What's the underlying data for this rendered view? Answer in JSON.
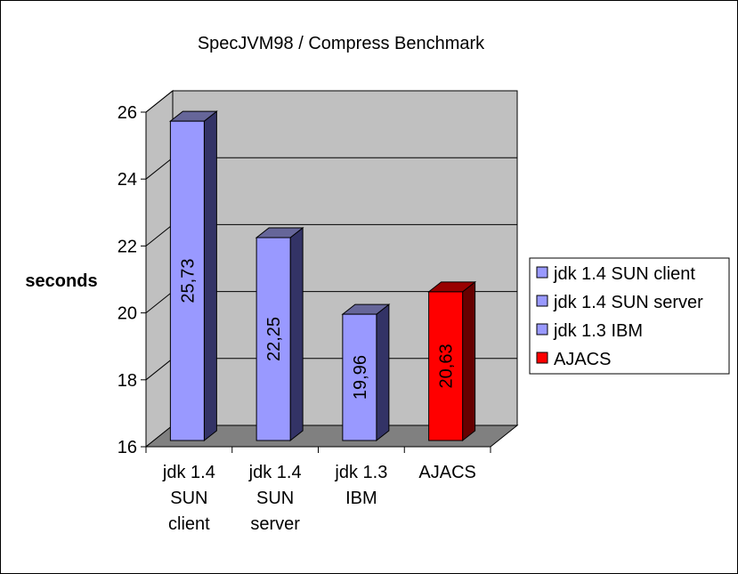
{
  "chart_data": {
    "type": "bar",
    "title": "SpecJVM98 / Compress Benchmark",
    "xlabel": "",
    "ylabel": "seconds",
    "ylim": [
      16,
      26
    ],
    "yticks": [
      "16",
      "18",
      "20",
      "22",
      "24",
      "26"
    ],
    "ytick_values": [
      16,
      18,
      20,
      22,
      24,
      26
    ],
    "categories": [
      [
        "jdk 1.4",
        "SUN",
        "client"
      ],
      [
        "jdk 1.4",
        "SUN",
        "server"
      ],
      [
        "jdk 1.3",
        "IBM"
      ],
      [
        "AJACS"
      ]
    ],
    "values": [
      25.73,
      22.25,
      19.96,
      20.63
    ],
    "data_labels": [
      "25,73",
      "22,25",
      "19,96",
      "20,63"
    ],
    "legend": {
      "placement": "right",
      "entries": [
        {
          "label": "jdk 1.4 SUN client",
          "color": "#9999ff"
        },
        {
          "label": "jdk 1.4 SUN server",
          "color": "#9999ff"
        },
        {
          "label": "jdk 1.3 IBM",
          "color": "#9999ff"
        },
        {
          "label": "AJACS",
          "color": "#ff0000"
        }
      ]
    },
    "bar_colors": [
      "#9999ff",
      "#9999ff",
      "#9999ff",
      "#ff0000"
    ],
    "grid": true,
    "wall_color": "#c0c0c0",
    "floor_color": "#808080"
  }
}
